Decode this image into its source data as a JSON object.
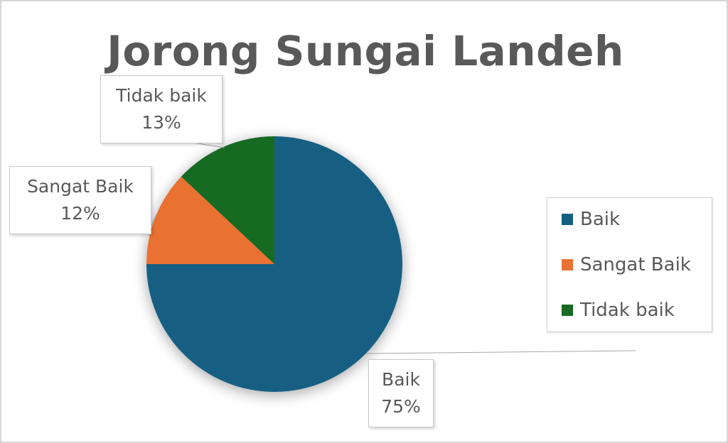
{
  "chart_data": {
    "type": "pie",
    "title": "Jorong Sungai Landeh",
    "categories": [
      "Baik",
      "Sangat Baik",
      "Tidak baik"
    ],
    "values": [
      75,
      12,
      13
    ],
    "colors": [
      "#145f82",
      "#e97132",
      "#196b24"
    ],
    "data_labels": [
      {
        "name": "Baik",
        "value": "75%"
      },
      {
        "name": "Sangat Baik",
        "value": "12%"
      },
      {
        "name": "Tidak baik",
        "value": "13%"
      }
    ],
    "legend": {
      "position": "right",
      "items": [
        "Baik",
        "Sangat Baik",
        "Tidak baik"
      ]
    }
  }
}
